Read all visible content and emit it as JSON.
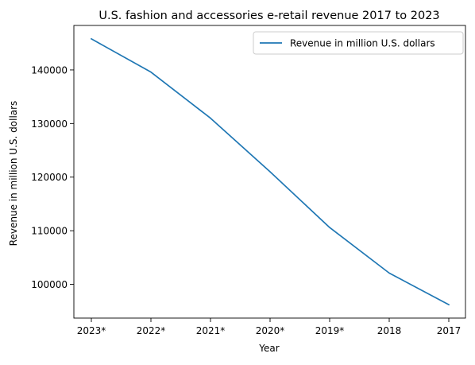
{
  "chart_data": {
    "type": "line",
    "title": "U.S. fashion and accessories e-retail revenue 2017 to 2023",
    "xlabel": "Year",
    "ylabel": "Revenue in million U.S. dollars",
    "categories": [
      "2023*",
      "2022*",
      "2021*",
      "2020*",
      "2019*",
      "2018",
      "2017"
    ],
    "series": [
      {
        "name": "Revenue in million U.S. dollars",
        "color": "#1f77b4",
        "values": [
          145800,
          139600,
          131000,
          121000,
          110600,
          102100,
          96200
        ]
      }
    ],
    "yticks": [
      100000,
      110000,
      120000,
      130000,
      140000
    ],
    "ylim": [
      93700,
      148300
    ],
    "grid": false,
    "legend_position": "top-right"
  }
}
